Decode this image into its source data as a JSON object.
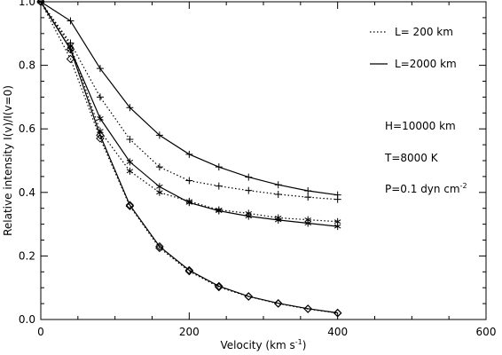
{
  "chart_data": {
    "type": "line",
    "title": "",
    "xlabel": "Velocity (km s",
    "xlabel_sup": "-1",
    "xlabel_end": ")",
    "ylabel": "Relative intensity I(v)/I(v=0)",
    "xlim": [
      0,
      600
    ],
    "ylim": [
      0,
      1.0
    ],
    "x_ticks": [
      0,
      200,
      400,
      600
    ],
    "x_tick_labels": [
      "0",
      "200",
      "400",
      "600"
    ],
    "y_ticks": [
      0.0,
      0.2,
      0.4,
      0.6,
      0.8,
      1.0
    ],
    "y_tick_labels": [
      "0.0",
      "0.2",
      "0.4",
      "0.6",
      "0.8",
      "1.0"
    ],
    "grid": false,
    "x": [
      0,
      40,
      80,
      120,
      160,
      200,
      240,
      280,
      320,
      360,
      400
    ],
    "series": [
      {
        "style": "dotted",
        "marker": "plus",
        "values": [
          1.0,
          0.87,
          0.7,
          0.567,
          0.48,
          0.437,
          0.42,
          0.406,
          0.394,
          0.385,
          0.378
        ]
      },
      {
        "style": "solid",
        "marker": "plus",
        "values": [
          1.0,
          0.94,
          0.79,
          0.667,
          0.58,
          0.52,
          0.48,
          0.448,
          0.424,
          0.405,
          0.392
        ]
      },
      {
        "style": "dotted",
        "marker": "asterisk",
        "values": [
          1.0,
          0.862,
          0.593,
          0.467,
          0.4,
          0.372,
          0.345,
          0.334,
          0.32,
          0.314,
          0.308
        ]
      },
      {
        "style": "solid",
        "marker": "asterisk",
        "values": [
          1.0,
          0.85,
          0.633,
          0.496,
          0.418,
          0.368,
          0.342,
          0.325,
          0.313,
          0.303,
          0.293
        ]
      },
      {
        "style": "dotted",
        "marker": "diamond",
        "values": [
          1.0,
          0.82,
          0.57,
          0.357,
          0.225,
          0.152,
          0.102,
          0.072,
          0.05,
          0.033,
          0.02
        ]
      },
      {
        "style": "solid",
        "marker": "diamond",
        "values": [
          1.0,
          0.85,
          0.58,
          0.36,
          0.23,
          0.155,
          0.105,
          0.073,
          0.051,
          0.034,
          0.021
        ]
      }
    ],
    "legend": {
      "placement": "top-right",
      "entries": [
        {
          "style": "dotted",
          "label": "L= 200 km"
        },
        {
          "style": "solid",
          "label": "L=2000 km"
        }
      ]
    },
    "annotations": {
      "h": "H=10000 km",
      "t": "T=8000 K",
      "p": "P=0.1 dyn cm",
      "p_sup": "-2"
    }
  }
}
